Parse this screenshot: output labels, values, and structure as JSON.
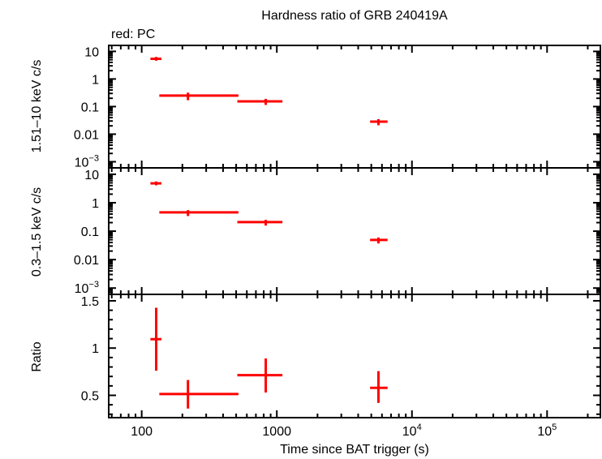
{
  "chart_data": {
    "type": "scatter",
    "title": "Hardness ratio of GRB 240419A",
    "legend_note": "red: PC",
    "xlabel": "Time since BAT trigger (s)",
    "xscale": "log",
    "xlim": [
      57,
      248000
    ],
    "x_ticks": [
      {
        "value": 100,
        "label": "100"
      },
      {
        "value": 1000,
        "label": "1000"
      },
      {
        "value": 10000,
        "label": "10",
        "exp": "4"
      },
      {
        "value": 100000,
        "label": "10",
        "exp": "5"
      }
    ],
    "color": "#ff0000",
    "panels": [
      {
        "ylabel": "1.51–10 keV c/s",
        "yscale": "log",
        "ylim": [
          0.0006,
          16.5
        ],
        "y_ticks": [
          {
            "value": 10,
            "label": "10"
          },
          {
            "value": 1,
            "label": "1"
          },
          {
            "value": 0.1,
            "label": "0.1"
          },
          {
            "value": 0.01,
            "label": "0.01"
          },
          {
            "value": 0.001,
            "label": "10",
            "exp": "−3"
          }
        ],
        "points": [
          {
            "x": 128,
            "xlo": 116,
            "xhi": 140,
            "y": 5.4,
            "ylo": 4.6,
            "yhi": 6.3
          },
          {
            "x": 220,
            "xlo": 135,
            "xhi": 520,
            "y": 0.25,
            "ylo": 0.17,
            "yhi": 0.32
          },
          {
            "x": 828,
            "xlo": 510,
            "xhi": 1100,
            "y": 0.154,
            "ylo": 0.115,
            "yhi": 0.19
          },
          {
            "x": 5650,
            "xlo": 4900,
            "xhi": 6600,
            "y": 0.0284,
            "ylo": 0.021,
            "yhi": 0.035
          }
        ]
      },
      {
        "ylabel": "0.3–1.5 keV c/s",
        "yscale": "log",
        "ylim": [
          0.0006,
          16.8
        ],
        "y_ticks": [
          {
            "value": 10,
            "label": "10"
          },
          {
            "value": 1,
            "label": "1"
          },
          {
            "value": 0.1,
            "label": "0.1"
          },
          {
            "value": 0.01,
            "label": "0.01"
          },
          {
            "value": 0.001,
            "label": "10",
            "exp": "−3"
          }
        ],
        "points": [
          {
            "x": 128,
            "xlo": 116,
            "xhi": 140,
            "y": 4.8,
            "ylo": 4.1,
            "yhi": 5.6
          },
          {
            "x": 220,
            "xlo": 135,
            "xhi": 520,
            "y": 0.457,
            "ylo": 0.34,
            "yhi": 0.55
          },
          {
            "x": 828,
            "xlo": 510,
            "xhi": 1100,
            "y": 0.209,
            "ylo": 0.157,
            "yhi": 0.25
          },
          {
            "x": 5650,
            "xlo": 4900,
            "xhi": 6600,
            "y": 0.049,
            "ylo": 0.037,
            "yhi": 0.06
          }
        ]
      },
      {
        "ylabel": "Ratio",
        "yscale": "linear",
        "ylim": [
          0.264,
          1.568
        ],
        "y_ticks": [
          {
            "value": 1.5,
            "label": "1.5"
          },
          {
            "value": 1,
            "label": "1"
          },
          {
            "value": 0.5,
            "label": "0.5"
          }
        ],
        "points": [
          {
            "x": 128,
            "xlo": 116,
            "xhi": 140,
            "y": 1.094,
            "ylo": 0.761,
            "yhi": 1.426
          },
          {
            "x": 220,
            "xlo": 135,
            "xhi": 520,
            "y": 0.514,
            "ylo": 0.36,
            "yhi": 0.662
          },
          {
            "x": 828,
            "xlo": 510,
            "xhi": 1100,
            "y": 0.713,
            "ylo": 0.53,
            "yhi": 0.89
          },
          {
            "x": 5650,
            "xlo": 4900,
            "xhi": 6600,
            "y": 0.579,
            "ylo": 0.42,
            "yhi": 0.756
          }
        ]
      }
    ]
  }
}
